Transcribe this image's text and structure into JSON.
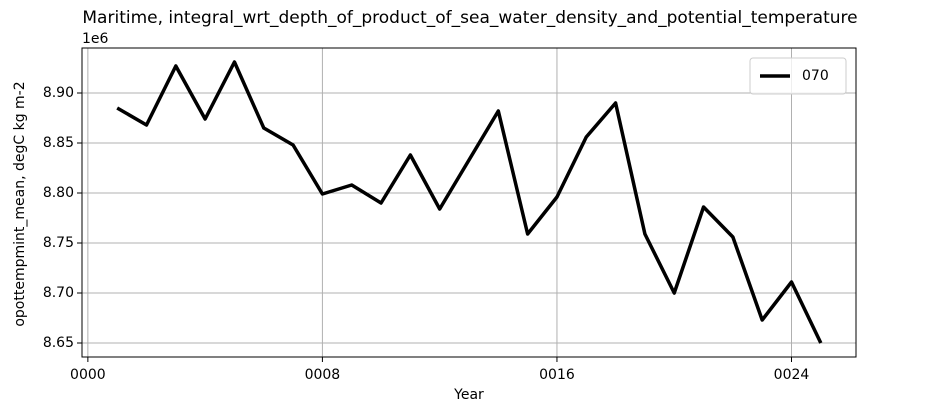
{
  "chart_data": {
    "type": "line",
    "title": "Maritime, integral_wrt_depth_of_product_of_sea_water_density_and_potential_temperature",
    "x_label": "Year",
    "y_label": "opottempmint_mean, degC kg m-2",
    "y_offset_label": "1e6",
    "x": [
      1,
      2,
      3,
      4,
      5,
      6,
      7,
      8,
      9,
      10,
      11,
      12,
      13,
      14,
      15,
      16,
      17,
      18,
      19,
      20,
      21,
      22,
      23,
      24,
      25
    ],
    "series": [
      {
        "name": "070",
        "color": "#000000",
        "values": [
          8.885,
          8.868,
          8.927,
          8.874,
          8.931,
          8.865,
          8.848,
          8.799,
          8.808,
          8.79,
          8.838,
          8.784,
          8.833,
          8.882,
          8.759,
          8.796,
          8.856,
          8.89,
          8.759,
          8.7,
          8.786,
          8.756,
          8.673,
          8.711,
          8.65
        ]
      }
    ],
    "xlim": [
      -0.2,
      26.2
    ],
    "ylim": [
      8.636,
      8.945
    ],
    "xticks": [
      {
        "value": 0,
        "label": "0000"
      },
      {
        "value": 8,
        "label": "0008"
      },
      {
        "value": 16,
        "label": "0016"
      },
      {
        "value": 24,
        "label": "0024"
      }
    ],
    "yticks": [
      {
        "value": 8.65,
        "label": "8.65"
      },
      {
        "value": 8.7,
        "label": "8.70"
      },
      {
        "value": 8.75,
        "label": "8.75"
      },
      {
        "value": 8.8,
        "label": "8.80"
      },
      {
        "value": 8.85,
        "label": "8.85"
      },
      {
        "value": 8.9,
        "label": "8.90"
      }
    ],
    "grid": true,
    "legend": "upper right"
  }
}
